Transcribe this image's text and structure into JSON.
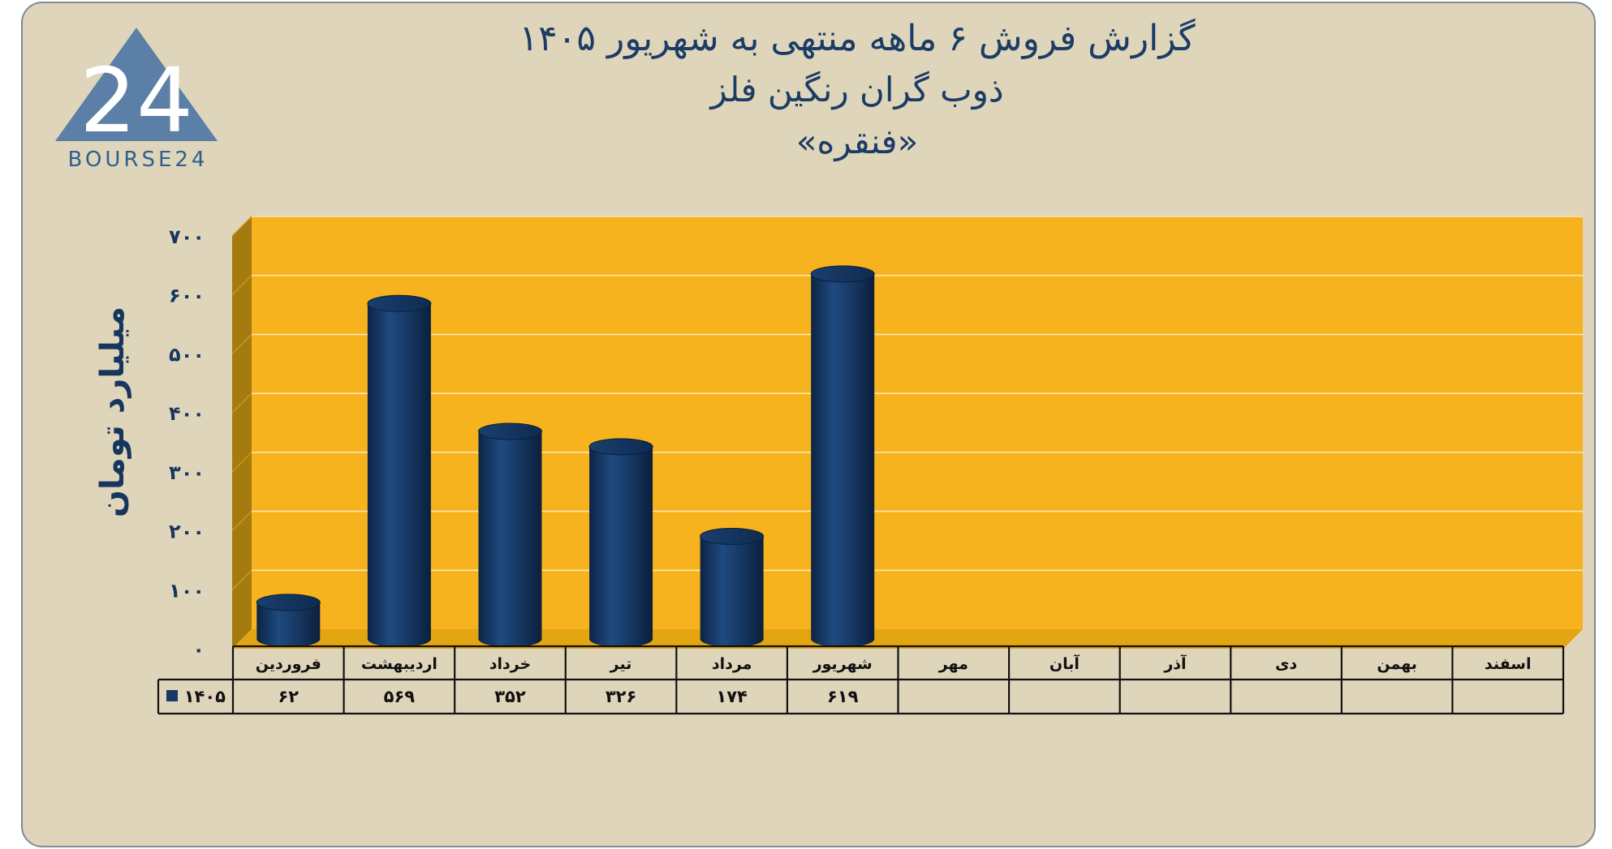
{
  "header": {
    "title_line1": "گزارش  فروش ۶ ماهه منتهی به شهریور ۱۴۰۵",
    "title_line2": "ذوب گران رنگین فلز",
    "title_line3": "«فنقره»"
  },
  "logo": {
    "text": "BOURSE24",
    "mark": "24"
  },
  "colors": {
    "background": "#dfd5ba",
    "plot": "#f7b31e",
    "bar": "#173a66",
    "title": "#1b3c66",
    "floor": "#a57b10"
  },
  "chart_data": {
    "type": "bar",
    "categories": [
      "فروردین",
      "اردیبهشت",
      "خرداد",
      "تیر",
      "مرداد",
      "شهریور",
      "مهر",
      "آبان",
      "آذر",
      "دی",
      "بهمن",
      "اسفند"
    ],
    "series": [
      {
        "name": "۱۴۰۵",
        "values": [
          62,
          569,
          352,
          326,
          174,
          619,
          null,
          null,
          null,
          null,
          null,
          null
        ],
        "labels": [
          "۶۲",
          "۵۶۹",
          "۳۵۲",
          "۳۲۶",
          "۱۷۴",
          "۶۱۹",
          "",
          "",
          "",
          "",
          "",
          ""
        ]
      }
    ],
    "ylabel": "میلیارد تومان",
    "ylim": [
      0,
      700
    ],
    "yticks": [
      0,
      100,
      200,
      300,
      400,
      500,
      600,
      700
    ],
    "ytick_labels": [
      "۰",
      "۱۰۰",
      "۲۰۰",
      "۳۰۰",
      "۴۰۰",
      "۵۰۰",
      "۶۰۰",
      "۷۰۰"
    ],
    "grid": true,
    "legend": "data-table"
  }
}
